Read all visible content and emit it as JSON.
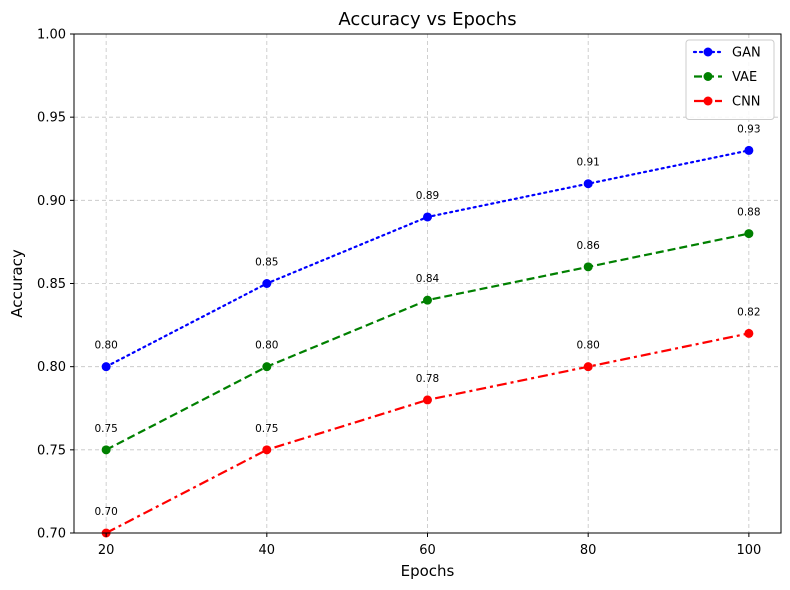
{
  "chart_data": {
    "type": "line",
    "title": "Accuracy vs Epochs",
    "xlabel": "Epochs",
    "ylabel": "Accuracy",
    "x": [
      20,
      40,
      60,
      80,
      100
    ],
    "xticks": [
      "20",
      "40",
      "60",
      "80",
      "100"
    ],
    "yticks": [
      "0.70",
      "0.75",
      "0.80",
      "0.85",
      "0.90",
      "0.95",
      "1.00"
    ],
    "ylim": [
      0.7,
      1.0
    ],
    "grid": true,
    "legend_position": "top-right",
    "series": [
      {
        "name": "GAN",
        "values": [
          0.8,
          0.85,
          0.89,
          0.91,
          0.93
        ],
        "labels": [
          "0.80",
          "0.85",
          "0.89",
          "0.91",
          "0.93"
        ],
        "color": "#0000ff",
        "linestyle": "dotted",
        "marker": "circle"
      },
      {
        "name": "VAE",
        "values": [
          0.75,
          0.8,
          0.84,
          0.86,
          0.88
        ],
        "labels": [
          "0.75",
          "0.80",
          "0.84",
          "0.86",
          "0.88"
        ],
        "color": "#008000",
        "linestyle": "dashed",
        "marker": "circle"
      },
      {
        "name": "CNN",
        "values": [
          0.7,
          0.75,
          0.78,
          0.8,
          0.82
        ],
        "labels": [
          "0.70",
          "0.75",
          "0.78",
          "0.80",
          "0.82"
        ],
        "color": "#ff0000",
        "linestyle": "dashdot",
        "marker": "circle"
      }
    ]
  }
}
